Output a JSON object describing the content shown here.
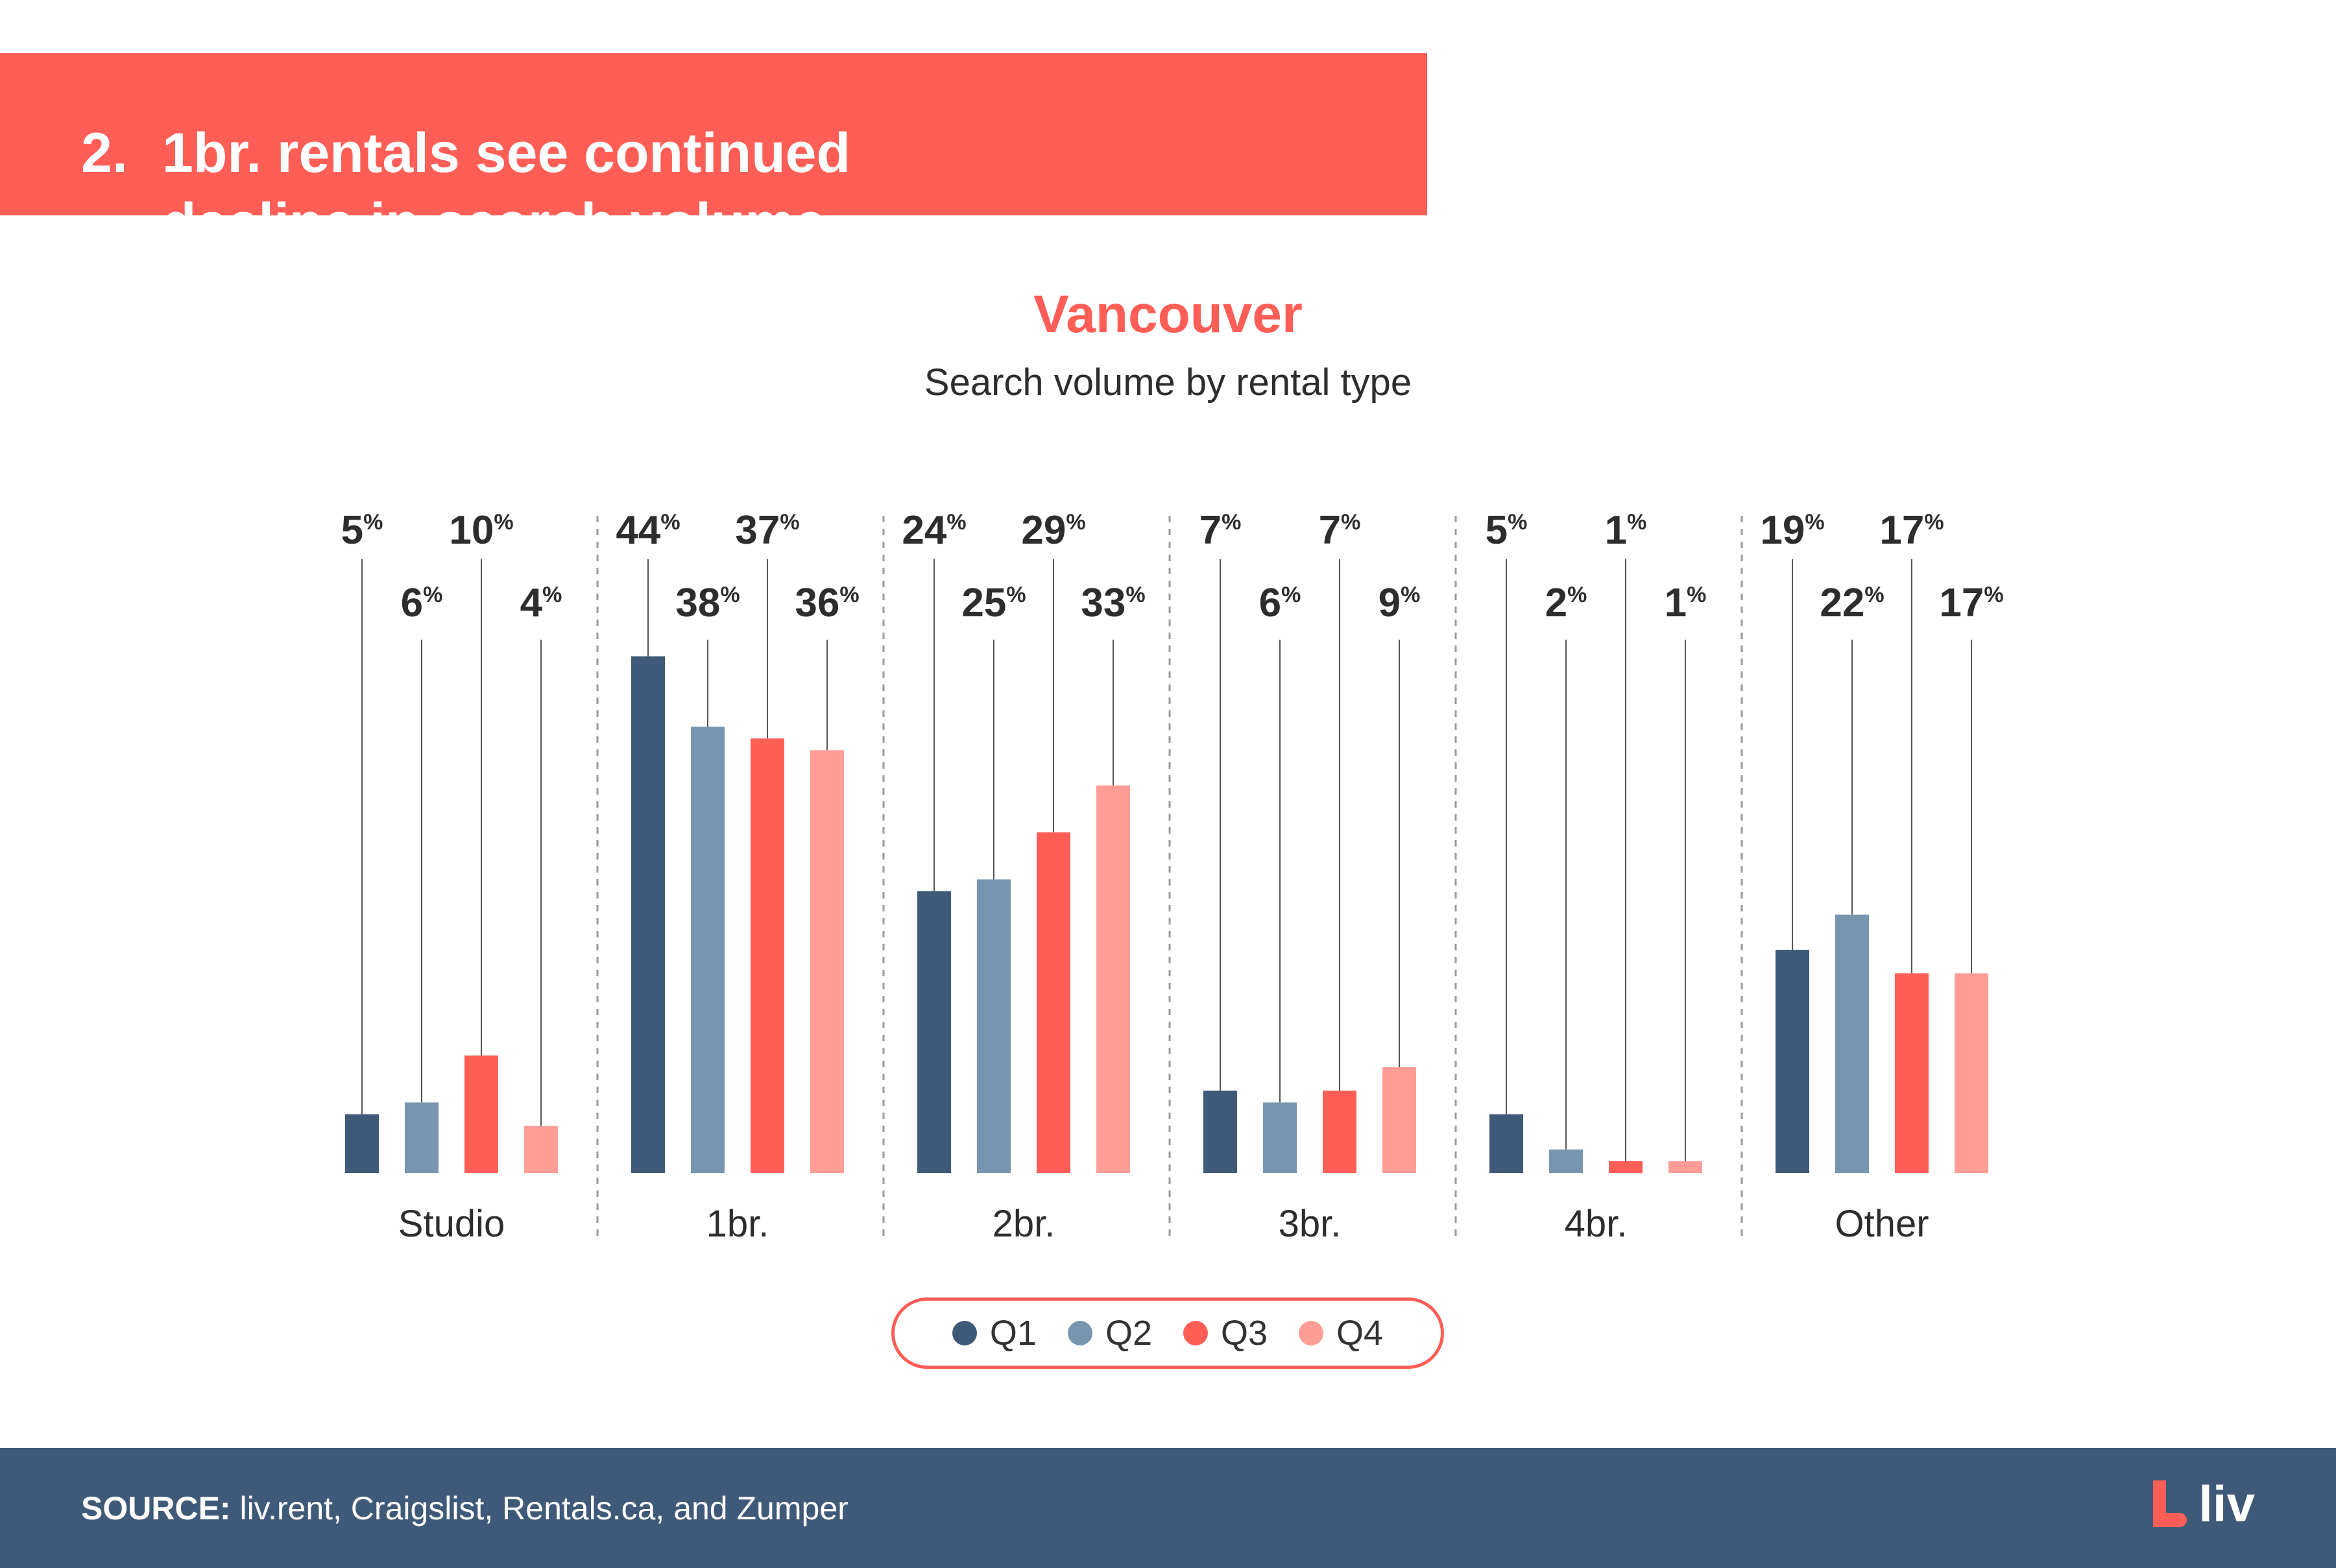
{
  "header": {
    "number": "2.",
    "title_line1": "1br. rentals see continued",
    "title_line2": "decline in search volume"
  },
  "chart_data": {
    "type": "bar",
    "title": "Vancouver",
    "subtitle": "Search volume by rental type",
    "categories": [
      "Studio",
      "1br.",
      "2br.",
      "3br.",
      "4br.",
      "Other"
    ],
    "series": [
      {
        "name": "Q1",
        "color": "#3f5a78",
        "values": [
          5,
          44,
          24,
          7,
          5,
          19
        ]
      },
      {
        "name": "Q2",
        "color": "#7895b0",
        "values": [
          6,
          38,
          25,
          6,
          2,
          22
        ]
      },
      {
        "name": "Q3",
        "color": "#ff5e57",
        "values": [
          10,
          37,
          29,
          7,
          1,
          17
        ]
      },
      {
        "name": "Q4",
        "color": "#ff9d96",
        "values": [
          4,
          36,
          33,
          9,
          1,
          17
        ]
      }
    ],
    "value_suffix": "%",
    "ylim": [
      0,
      48
    ],
    "grid": false,
    "legend_position": "bottom"
  },
  "footer": {
    "source_label": "SOURCE:",
    "source_text": " liv.rent, Craigslist, Rentals.ca, and Zumper",
    "logo_text": "liv"
  }
}
